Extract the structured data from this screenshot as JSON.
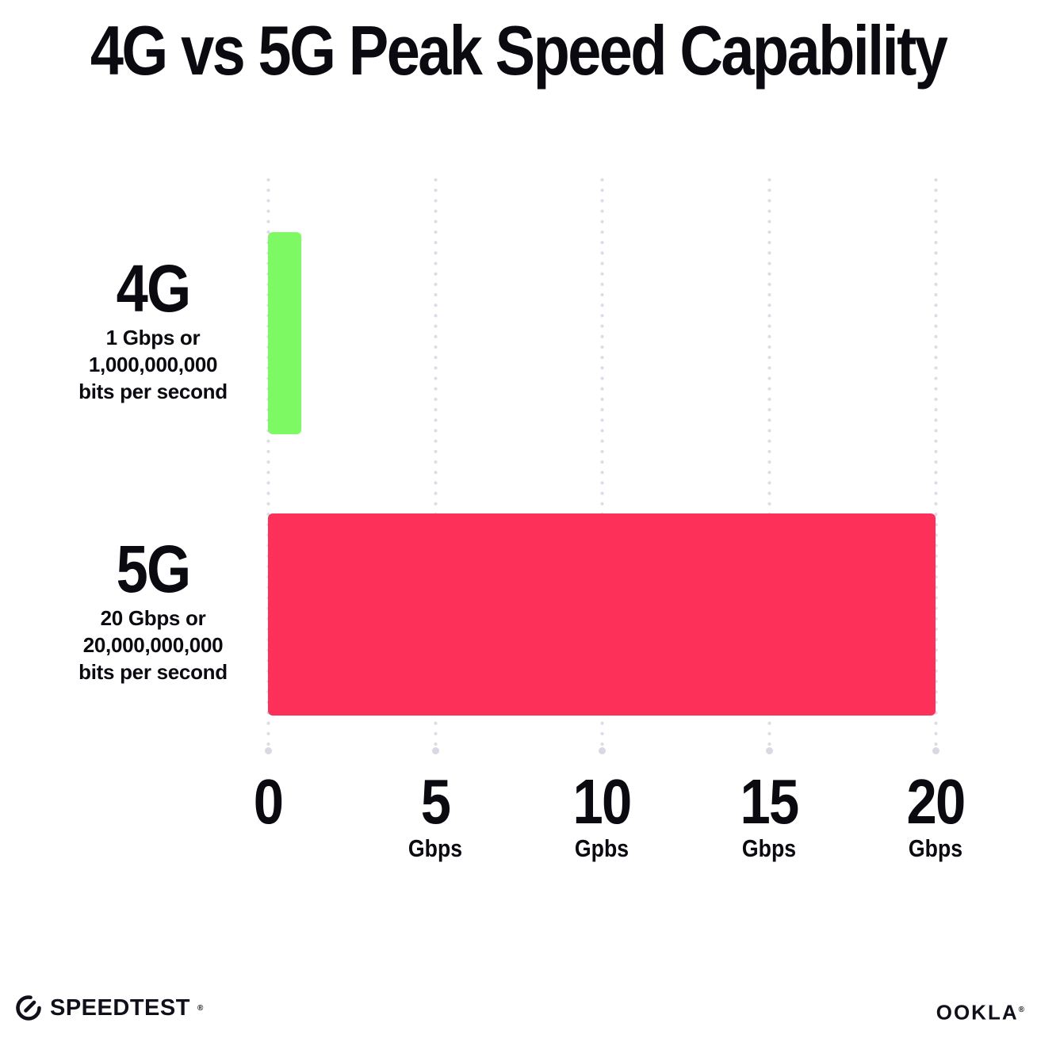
{
  "title": "4G vs 5G Peak Speed Capability",
  "chart_data": {
    "type": "bar",
    "orientation": "horizontal",
    "title": "4G vs 5G Peak Speed Capability",
    "categories": [
      "4G",
      "5G"
    ],
    "values": [
      1,
      20
    ],
    "value_unit": "Gbps",
    "xlim": [
      0,
      20
    ],
    "x_ticks": [
      {
        "value": 0,
        "label": "0",
        "unit": ""
      },
      {
        "value": 5,
        "label": "5",
        "unit": "Gbps"
      },
      {
        "value": 10,
        "label": "10",
        "unit": "Gpbs"
      },
      {
        "value": 15,
        "label": "15",
        "unit": "Gbps"
      },
      {
        "value": 20,
        "label": "20",
        "unit": "Gbps"
      }
    ],
    "grid": "vertical dotted gridlines at each tick with round end dot at bottom",
    "legend_position": "none",
    "bar_colors": [
      "#7df963",
      "#fc3058"
    ],
    "annotations": [
      "4G: 1 Gbps or 1,000,000,000 bits per second",
      "5G: 20 Gbps or 20,000,000,000 bits per second"
    ]
  },
  "rows": [
    {
      "label": "4G",
      "sublabel_lines": [
        "1 Gbps or",
        "1,000,000,000",
        "bits per second"
      ],
      "value_gbps": 1,
      "color": "#7df963"
    },
    {
      "label": "5G",
      "sublabel_lines": [
        "20 Gbps or",
        "20,000,000,000",
        "bits per second"
      ],
      "value_gbps": 20,
      "color": "#fc3058"
    }
  ],
  "footer": {
    "speedtest_wordmark": "SPEEDTEST",
    "speedtest_trademark": "®",
    "ookla_wordmark": "OOKLA",
    "ookla_trademark": "®"
  },
  "colors": {
    "background": "#ffffff",
    "text": "#0a0a10",
    "bar_4g": "#7df963",
    "bar_5g": "#fc3058",
    "grid_dot": "#dcdce8"
  }
}
